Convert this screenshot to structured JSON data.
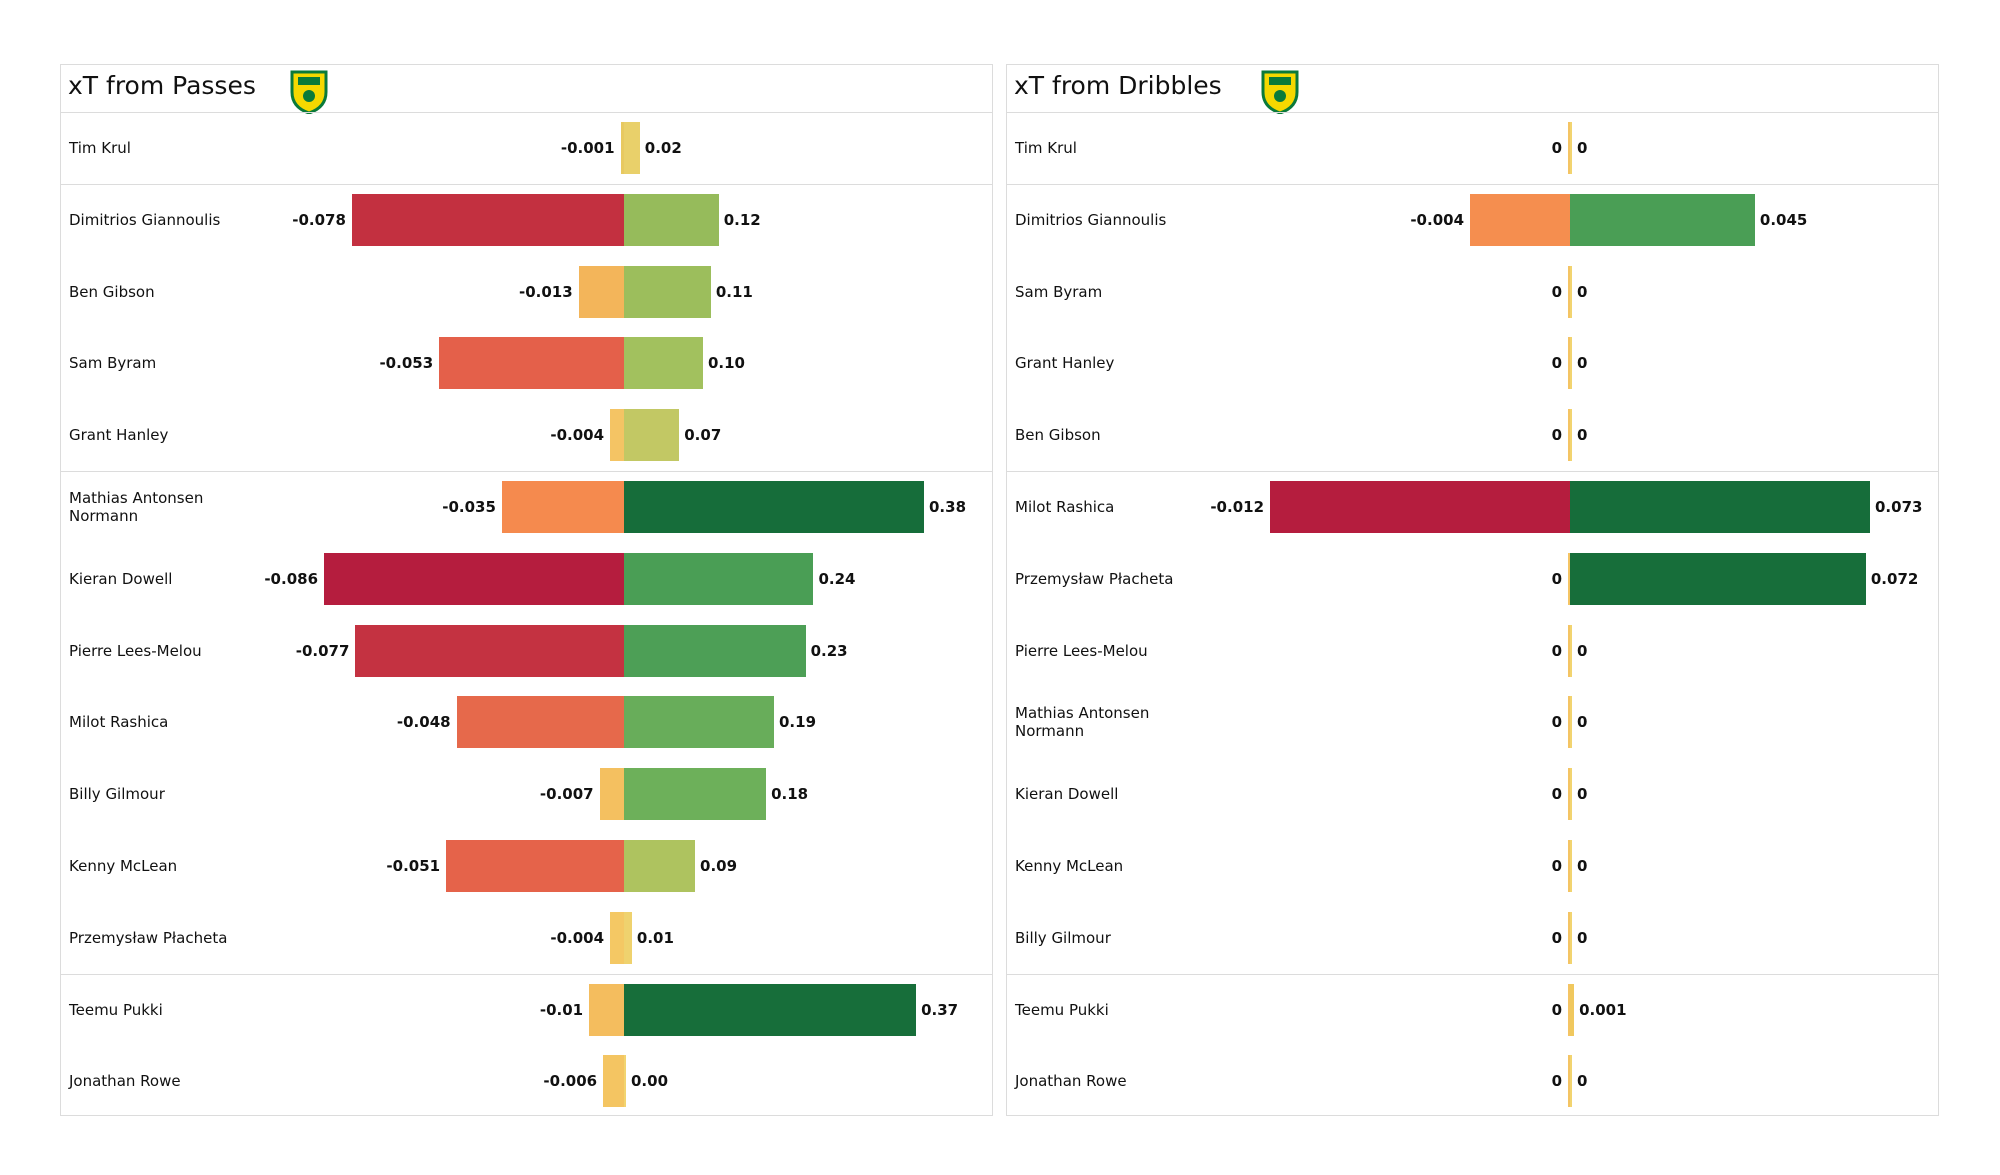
{
  "chart_data": [
    {
      "type": "diverging_bar",
      "title": "xT from Passes",
      "categories": [
        "Tim Krul",
        "Dimitrios Giannoulis",
        "Ben Gibson",
        "Sam Byram",
        "Grant Hanley",
        "Mathias  Antonsen Normann",
        "Kieran Dowell",
        "Pierre Lees-Melou",
        "Milot Rashica",
        "Billy Gilmour",
        "Kenny McLean",
        "Przemysław Płacheta",
        "Teemu Pukki",
        "Jonathan Rowe"
      ],
      "group_sizes": [
        1,
        4,
        7,
        2
      ],
      "negative": {
        "values": [
          -0.001,
          -0.078,
          -0.013,
          -0.053,
          -0.004,
          -0.035,
          -0.086,
          -0.077,
          -0.048,
          -0.007,
          -0.051,
          -0.004,
          -0.01,
          -0.006
        ],
        "value_labels": [
          "-0.001",
          "-0.078",
          "-0.013",
          "-0.053",
          "-0.004",
          "-0.035",
          "-0.086",
          "-0.077",
          "-0.048",
          "-0.007",
          "-0.051",
          "-0.004",
          "-0.01",
          "-0.006"
        ],
        "colors": [
          "#e8c960",
          "#c33040",
          "#f3b55a",
          "#e4604a",
          "#f4c464",
          "#f58a4e",
          "#b51d3e",
          "#c43241",
          "#e6694b",
          "#f4c060",
          "#e5634a",
          "#f4c864",
          "#f4bd5e",
          "#f4c562"
        ]
      },
      "positive": {
        "values": [
          0.02,
          0.12,
          0.11,
          0.1,
          0.07,
          0.38,
          0.24,
          0.23,
          0.19,
          0.18,
          0.09,
          0.01,
          0.37,
          0.0
        ],
        "value_labels": [
          "0.02",
          "0.12",
          "0.11",
          "0.10",
          "0.07",
          "0.38",
          "0.24",
          "0.23",
          "0.19",
          "0.18",
          "0.09",
          "0.01",
          "0.37",
          "0.00"
        ],
        "colors": [
          "#e9d06a",
          "#96bb5b",
          "#9cbe5c",
          "#a2c15e",
          "#c2c864",
          "#166d3a",
          "#4a9e55",
          "#4d9f56",
          "#68ad5a",
          "#6db05a",
          "#aec35f",
          "#efd26e",
          "#176e3a",
          "#f2d470"
        ]
      }
    },
    {
      "type": "diverging_bar",
      "title": "xT from Dribbles",
      "categories": [
        "Tim Krul",
        "Dimitrios Giannoulis",
        "Sam Byram",
        "Grant Hanley",
        "Ben Gibson",
        "Milot Rashica",
        "Przemysław Płacheta",
        "Pierre Lees-Melou",
        "Mathias  Antonsen Normann",
        "Kieran Dowell",
        "Kenny McLean",
        "Billy Gilmour",
        "Teemu Pukki",
        "Jonathan Rowe"
      ],
      "group_sizes": [
        1,
        4,
        7,
        2
      ],
      "negative": {
        "values": [
          0,
          -0.004,
          0,
          0,
          0,
          -0.012,
          0,
          0,
          0,
          0,
          0,
          0,
          0,
          0
        ],
        "value_labels": [
          "0",
          "-0.004",
          "0",
          "0",
          "0",
          "-0.012",
          "0",
          "0",
          "0",
          "0",
          "0",
          "0",
          "0",
          "0"
        ],
        "colors": [
          "#f4c464",
          "#f58e4f",
          "#f4c464",
          "#f4c464",
          "#f4c464",
          "#b51d3e",
          "#f4c464",
          "#f4c464",
          "#f4c464",
          "#f4c464",
          "#f4c464",
          "#f4c464",
          "#f4c464",
          "#f4c464"
        ]
      },
      "positive": {
        "values": [
          0,
          0.045,
          0,
          0,
          0,
          0.073,
          0.072,
          0,
          0,
          0,
          0,
          0,
          0.001,
          0
        ],
        "value_labels": [
          "0",
          "0.045",
          "0",
          "0",
          "0",
          "0.073",
          "0.072",
          "0",
          "0",
          "0",
          "0",
          "0",
          "0.001",
          "0"
        ],
        "colors": [
          "#f2d470",
          "#4a9e55",
          "#f2d470",
          "#f2d470",
          "#f2d470",
          "#166d3a",
          "#176e3a",
          "#f2d470",
          "#f2d470",
          "#f2d470",
          "#f2d470",
          "#f2d470",
          "#f0c85e",
          "#f2d470"
        ]
      }
    }
  ]
}
